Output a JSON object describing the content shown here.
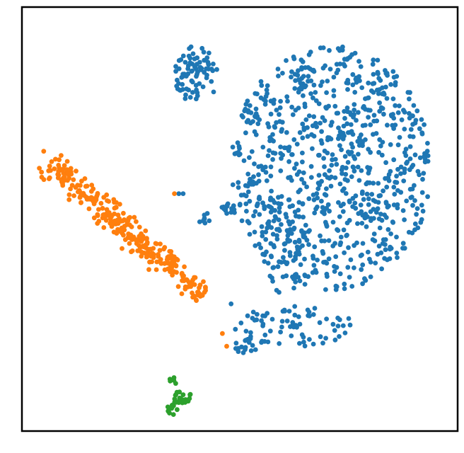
{
  "chart_data": {
    "type": "scatter",
    "title": "",
    "xlabel": "",
    "ylabel": "",
    "xlim": [
      0,
      100
    ],
    "ylim": [
      0,
      100
    ],
    "grid": false,
    "legend": "none",
    "ticks": "none",
    "series": [
      {
        "color": "#1f77b4",
        "clusters": [
          {
            "cx": 71,
            "cy": 62,
            "rx": 23,
            "ry": 29,
            "n": 820,
            "seed": 11
          },
          {
            "cx": 40,
            "cy": 84,
            "rx": 5,
            "ry": 7,
            "n": 80,
            "seed": 12
          },
          {
            "cx": 60,
            "cy": 44,
            "rx": 5,
            "ry": 12,
            "n": 60,
            "seed": 13
          },
          {
            "cx": 63,
            "cy": 25,
            "rx": 13,
            "ry": 5,
            "n": 70,
            "seed": 14
          },
          {
            "cx": 47,
            "cy": 52,
            "rx": 2,
            "ry": 2,
            "n": 14,
            "seed": 15
          },
          {
            "cx": 42,
            "cy": 50,
            "rx": 1.5,
            "ry": 1.5,
            "n": 8,
            "seed": 16
          },
          {
            "cx": 52,
            "cy": 20,
            "rx": 4,
            "ry": 2,
            "n": 18,
            "seed": 17
          }
        ],
        "extra_points": [
          [
            36,
            56
          ],
          [
            37,
            56
          ],
          [
            48,
            30
          ],
          [
            49,
            24
          ]
        ]
      },
      {
        "color": "#ff7f0e",
        "band": {
          "from": [
            6,
            63
          ],
          "to": [
            42,
            32
          ],
          "width": 4.5,
          "n": 310,
          "seed": 21
        },
        "extra_points": [
          [
            5,
            66
          ],
          [
            9,
            65
          ],
          [
            4,
            62
          ],
          [
            35,
            56
          ],
          [
            46,
            23
          ],
          [
            47,
            20
          ]
        ]
      },
      {
        "color": "#2ca02c",
        "clusters": [
          {
            "cx": 36.5,
            "cy": 8,
            "rx": 2.5,
            "ry": 1.5,
            "n": 22,
            "seed": 31
          },
          {
            "cx": 34.5,
            "cy": 5,
            "rx": 1.5,
            "ry": 1.2,
            "n": 10,
            "seed": 32
          },
          {
            "cx": 35,
            "cy": 12,
            "rx": 1.2,
            "ry": 0.8,
            "n": 5,
            "seed": 33
          }
        ],
        "extra_points": []
      }
    ]
  }
}
